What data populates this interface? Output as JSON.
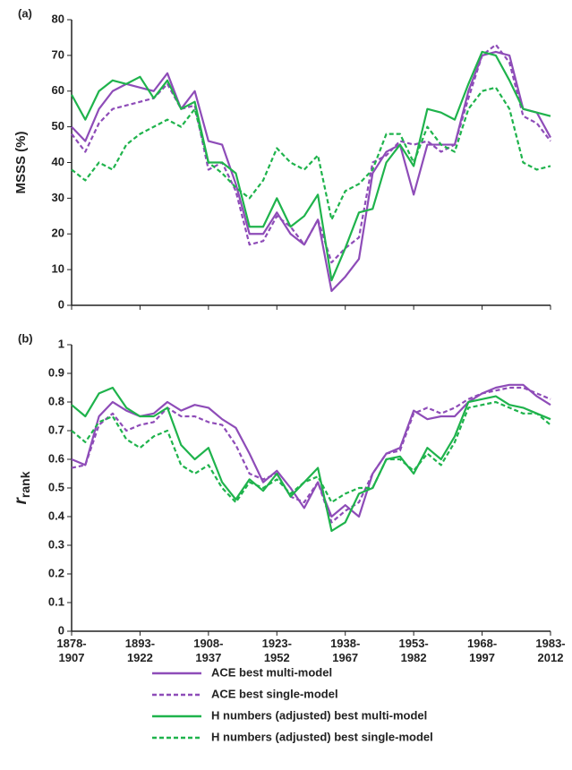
{
  "chart_data": [
    {
      "type": "line",
      "panel_label": "(a)",
      "ylabel": "MSSS (%)",
      "x": [
        1878,
        1881,
        1884,
        1887,
        1890,
        1893,
        1896,
        1899,
        1902,
        1905,
        1908,
        1911,
        1914,
        1917,
        1920,
        1923,
        1926,
        1929,
        1932,
        1935,
        1938,
        1941,
        1944,
        1947,
        1950,
        1953,
        1956,
        1959,
        1962,
        1965,
        1968,
        1971,
        1974,
        1977,
        1980,
        1983
      ],
      "xlim": [
        1878,
        1983
      ],
      "xticks": [
        1878,
        1893,
        1908,
        1923,
        1938,
        1953,
        1968,
        1983
      ],
      "ylim": [
        0,
        80
      ],
      "yticks": [
        0,
        10,
        20,
        30,
        40,
        50,
        60,
        70,
        80
      ],
      "series": [
        {
          "name": "ACE best multi-model",
          "color": "#8e4cb8",
          "dashed": false,
          "values": [
            50,
            46,
            55,
            60,
            62,
            61,
            60,
            65,
            55,
            60,
            46,
            45,
            34,
            20,
            20,
            26,
            20,
            17,
            24,
            4,
            8,
            13,
            37,
            43,
            45,
            31,
            45,
            45,
            45,
            60,
            70,
            71,
            70,
            55,
            54,
            47
          ]
        },
        {
          "name": "ACE best single-model",
          "color": "#8e4cb8",
          "dashed": true,
          "values": [
            48,
            43,
            51,
            55,
            56,
            57,
            58,
            62,
            55,
            56,
            38,
            40,
            32,
            17,
            18,
            25,
            22,
            17,
            24,
            12,
            16,
            19,
            40,
            42,
            46,
            45,
            46,
            43,
            45,
            58,
            70,
            73,
            68,
            53,
            51,
            46
          ]
        },
        {
          "name": "H numbers (adjusted) best multi-model",
          "color": "#1fb34c",
          "dashed": false,
          "values": [
            59,
            52,
            60,
            63,
            62,
            64,
            58,
            63,
            55,
            57,
            40,
            40,
            37,
            22,
            22,
            30,
            22,
            25,
            31,
            7,
            16,
            26,
            27,
            40,
            45,
            39,
            55,
            54,
            52,
            62,
            71,
            70,
            63,
            55,
            54,
            53
          ]
        },
        {
          "name": "H numbers (adjusted) best single-model",
          "color": "#1fb34c",
          "dashed": true,
          "values": [
            38,
            35,
            40,
            38,
            45,
            48,
            50,
            52,
            50,
            55,
            40,
            37,
            33,
            30,
            35,
            44,
            40,
            38,
            42,
            24,
            32,
            34,
            38,
            48,
            48,
            40,
            50,
            45,
            43,
            55,
            60,
            61,
            55,
            40,
            38,
            39
          ]
        }
      ]
    },
    {
      "type": "line",
      "panel_label": "(b)",
      "ylabel": "r",
      "ylabel_sub": "rank",
      "x": [
        1878,
        1881,
        1884,
        1887,
        1890,
        1893,
        1896,
        1899,
        1902,
        1905,
        1908,
        1911,
        1914,
        1917,
        1920,
        1923,
        1926,
        1929,
        1932,
        1935,
        1938,
        1941,
        1944,
        1947,
        1950,
        1953,
        1956,
        1959,
        1962,
        1965,
        1968,
        1971,
        1974,
        1977,
        1980,
        1983
      ],
      "xlim": [
        1878,
        1983
      ],
      "xticks": [
        {
          "value": 1878,
          "label": "1878-\n1907"
        },
        {
          "value": 1893,
          "label": "1893-\n1922"
        },
        {
          "value": 1908,
          "label": "1908-\n1937"
        },
        {
          "value": 1923,
          "label": "1923-\n1952"
        },
        {
          "value": 1938,
          "label": "1938-\n1967"
        },
        {
          "value": 1953,
          "label": "1953-\n1982"
        },
        {
          "value": 1968,
          "label": "1968-\n1997"
        },
        {
          "value": 1983,
          "label": "1983-\n2012"
        }
      ],
      "ylim": [
        0,
        1
      ],
      "yticks": [
        0,
        0.1,
        0.2,
        0.3,
        0.4,
        0.5,
        0.6,
        0.7,
        0.8,
        0.9,
        1
      ],
      "series": [
        {
          "color": "#8e4cb8",
          "dashed": false,
          "values": [
            0.6,
            0.58,
            0.75,
            0.8,
            0.77,
            0.75,
            0.76,
            0.8,
            0.77,
            0.79,
            0.78,
            0.74,
            0.71,
            0.62,
            0.52,
            0.56,
            0.5,
            0.43,
            0.52,
            0.4,
            0.44,
            0.4,
            0.55,
            0.62,
            0.64,
            0.77,
            0.74,
            0.75,
            0.75,
            0.8,
            0.83,
            0.85,
            0.86,
            0.86,
            0.82,
            0.79
          ]
        },
        {
          "color": "#8e4cb8",
          "dashed": true,
          "values": [
            0.57,
            0.58,
            0.72,
            0.76,
            0.7,
            0.72,
            0.73,
            0.78,
            0.75,
            0.75,
            0.73,
            0.72,
            0.65,
            0.55,
            0.53,
            0.55,
            0.47,
            0.45,
            0.52,
            0.38,
            0.42,
            0.45,
            0.55,
            0.62,
            0.63,
            0.76,
            0.78,
            0.76,
            0.78,
            0.81,
            0.83,
            0.84,
            0.85,
            0.85,
            0.83,
            0.81
          ]
        },
        {
          "color": "#1fb34c",
          "dashed": false,
          "values": [
            0.79,
            0.75,
            0.83,
            0.85,
            0.78,
            0.75,
            0.75,
            0.78,
            0.65,
            0.6,
            0.64,
            0.52,
            0.46,
            0.53,
            0.49,
            0.55,
            0.47,
            0.52,
            0.57,
            0.35,
            0.38,
            0.48,
            0.5,
            0.6,
            0.61,
            0.55,
            0.64,
            0.6,
            0.68,
            0.8,
            0.81,
            0.82,
            0.79,
            0.78,
            0.76,
            0.74
          ]
        },
        {
          "color": "#1fb34c",
          "dashed": true,
          "values": [
            0.7,
            0.66,
            0.73,
            0.75,
            0.67,
            0.64,
            0.68,
            0.7,
            0.58,
            0.55,
            0.58,
            0.5,
            0.45,
            0.52,
            0.5,
            0.53,
            0.48,
            0.52,
            0.54,
            0.45,
            0.48,
            0.5,
            0.5,
            0.6,
            0.6,
            0.56,
            0.62,
            0.58,
            0.66,
            0.78,
            0.79,
            0.8,
            0.78,
            0.76,
            0.76,
            0.72
          ]
        }
      ]
    }
  ]
}
